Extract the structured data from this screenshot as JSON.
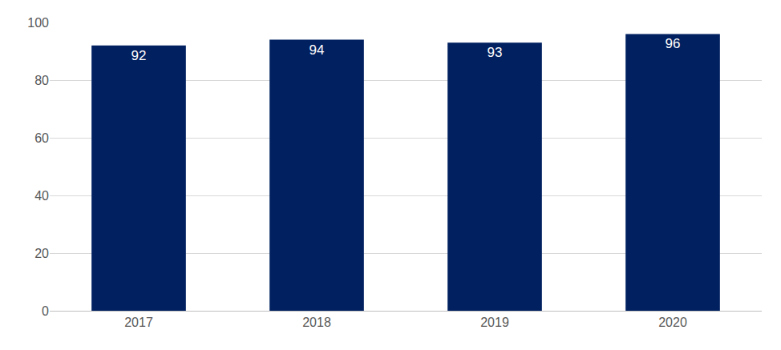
{
  "chart_data": {
    "type": "bar",
    "categories": [
      "2017",
      "2018",
      "2019",
      "2020"
    ],
    "values": [
      92,
      94,
      93,
      96
    ],
    "color": "#002060",
    "ylim": [
      0,
      100
    ],
    "yticks": [
      0,
      20,
      40,
      60,
      80,
      100
    ],
    "grid": true,
    "data_labels": true
  }
}
